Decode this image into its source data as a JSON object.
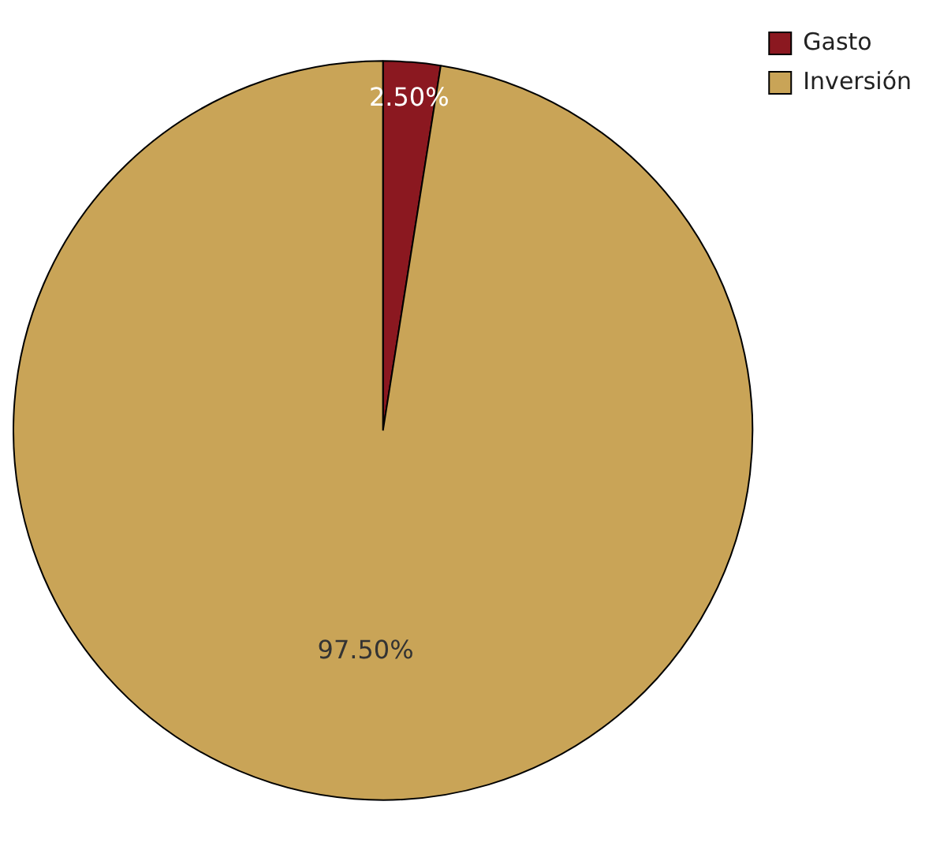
{
  "chart_data": {
    "type": "pie",
    "categories": [
      "Gasto",
      "Inversión"
    ],
    "values": [
      2.5,
      97.5
    ],
    "colors": [
      "#8b1820",
      "#c9a457"
    ],
    "value_labels": [
      "2.50%",
      "97.50%"
    ],
    "legend": "top right"
  }
}
